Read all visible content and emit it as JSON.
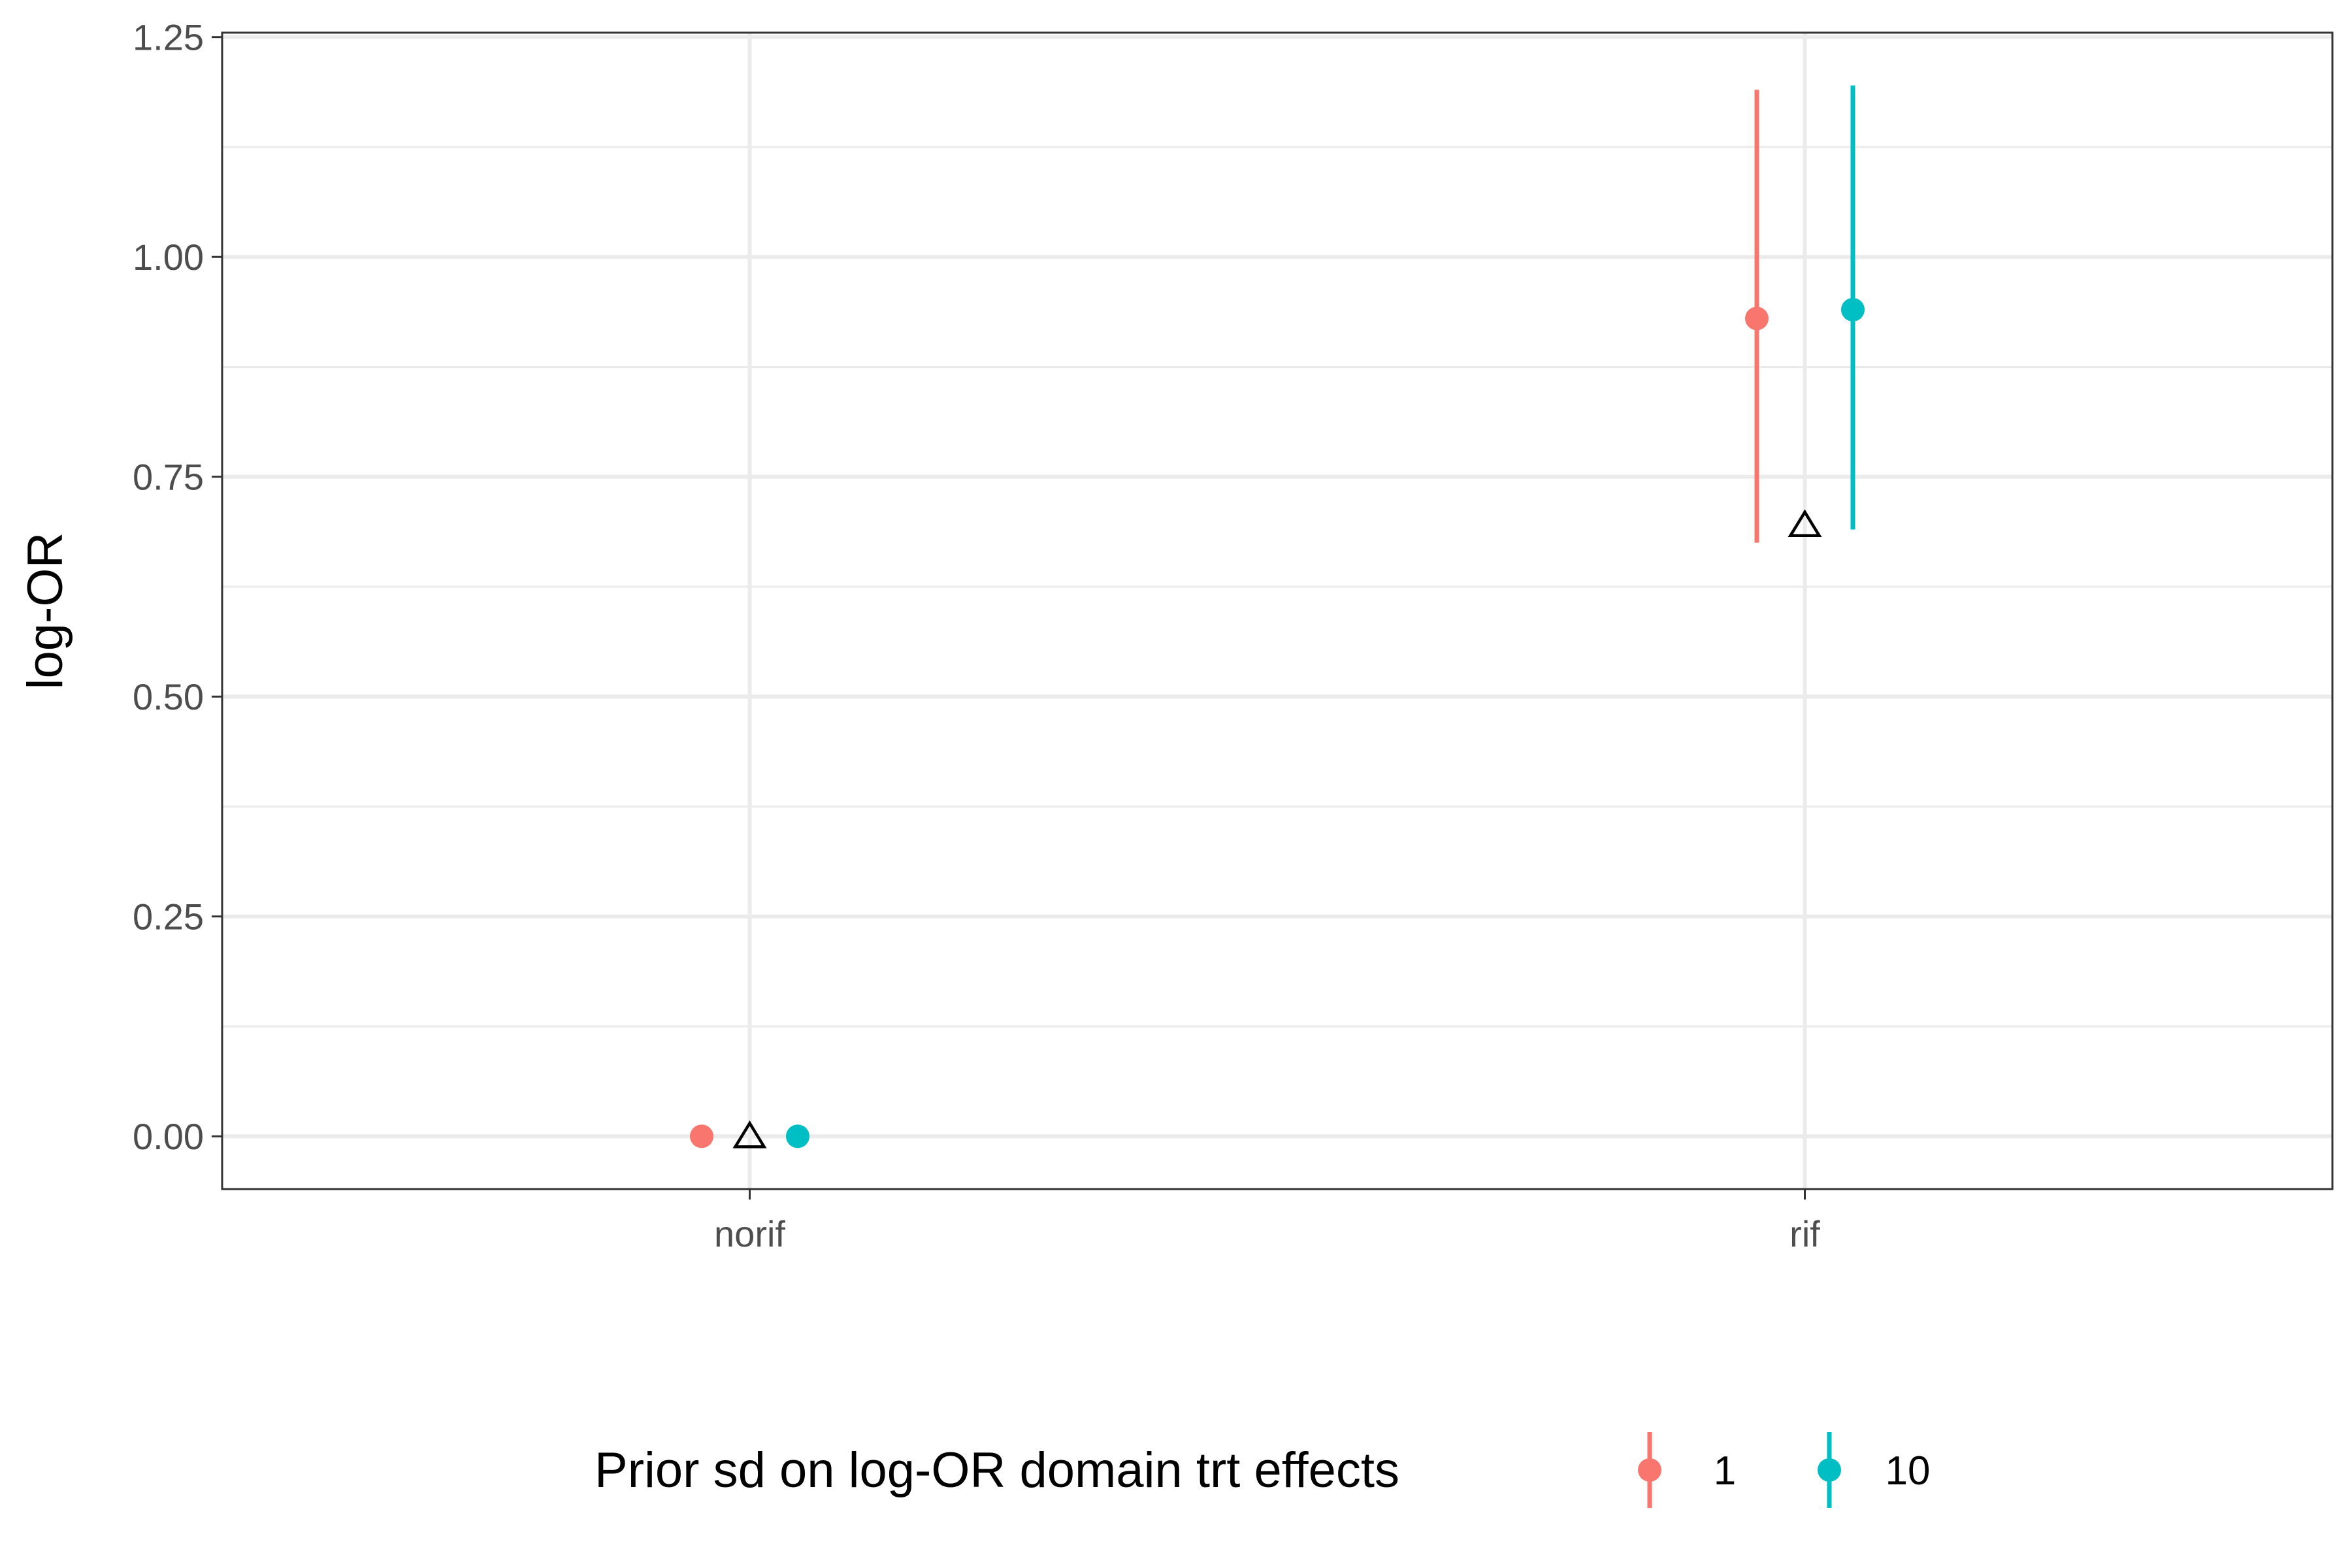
{
  "chart_data": {
    "type": "scatter",
    "ylabel": "log-OR",
    "xlabel": "",
    "categories": [
      "norif",
      "rif"
    ],
    "ylim": [
      -0.06,
      1.255
    ],
    "y_ticks": [
      "0.00",
      "0.25",
      "0.50",
      "0.75",
      "1.00",
      "1.25"
    ],
    "grid": true,
    "legend": {
      "title": "Prior sd on log-OR domain trt effects",
      "placement": "bottom",
      "entries": [
        "1",
        "10"
      ]
    },
    "series": [
      {
        "name": "1",
        "color": "#F8766D",
        "points": [
          {
            "category": "norif",
            "y": 0.0,
            "lower": 0.0,
            "upper": 0.0
          },
          {
            "category": "rif",
            "y": 0.93,
            "lower": 0.675,
            "upper": 1.19
          }
        ]
      },
      {
        "name": "10",
        "color": "#00BFC4",
        "points": [
          {
            "category": "norif",
            "y": 0.0,
            "lower": 0.0,
            "upper": 0.0
          },
          {
            "category": "rif",
            "y": 0.94,
            "lower": 0.69,
            "upper": 1.195
          }
        ]
      }
    ],
    "reference_markers": {
      "shape": "triangle",
      "points": [
        {
          "category": "norif",
          "y": 0.0
        },
        {
          "category": "rif",
          "y": 0.695
        }
      ]
    }
  }
}
